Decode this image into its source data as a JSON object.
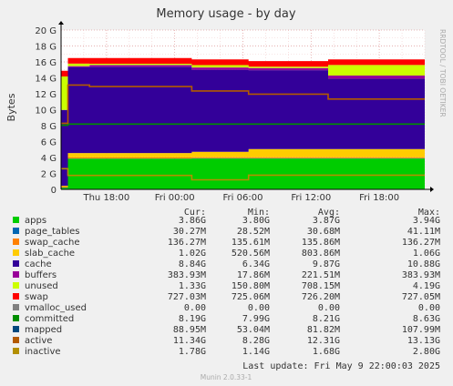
{
  "chart_data": {
    "type": "area",
    "title": "Memory usage - by day",
    "ylabel": "Bytes",
    "xlabel": "",
    "side_label": "RRDTOOL / TOBI OETIKER",
    "ylim": [
      0,
      20
    ],
    "y_unit": "G",
    "y_ticks": [
      "0",
      "2 G",
      "4 G",
      "6 G",
      "8 G",
      "10 G",
      "12 G",
      "14 G",
      "16 G",
      "18 G",
      "20 G"
    ],
    "x_ticks": [
      "Thu 18:00",
      "Fri 00:00",
      "Fri 06:00",
      "Fri 12:00",
      "Fri 18:00"
    ],
    "x_tick_hours": [
      18,
      24,
      30,
      36,
      42
    ],
    "x_range_hours": [
      14,
      46
    ],
    "grid": true,
    "stack_order": [
      "apps",
      "page_tables",
      "swap_cache",
      "slab_cache",
      "cache",
      "buffers",
      "unused",
      "swap"
    ],
    "line_series": [
      "committed",
      "active",
      "inactive"
    ],
    "columns": [
      "Cur:",
      "Min:",
      "Avg:",
      "Max:"
    ],
    "series": [
      {
        "name": "apps",
        "color": "#00cc00",
        "cur": "3.86G",
        "min": "3.80G",
        "avg": "3.87G",
        "max": "3.94G",
        "segments": [
          [
            14,
            14.6,
            0.2
          ],
          [
            14.6,
            25.5,
            3.85
          ],
          [
            25.5,
            46,
            3.88
          ]
        ]
      },
      {
        "name": "page_tables",
        "color": "#0066b3",
        "cur": "30.27M",
        "min": "28.52M",
        "avg": "30.68M",
        "max": "41.11M",
        "segments": [
          [
            14,
            46,
            0.03
          ]
        ]
      },
      {
        "name": "swap_cache",
        "color": "#ff8000",
        "cur": "136.27M",
        "min": "135.61M",
        "avg": "135.86M",
        "max": "136.27M",
        "segments": [
          [
            14,
            46,
            0.13
          ]
        ]
      },
      {
        "name": "slab_cache",
        "color": "#ffcc00",
        "cur": "1.02G",
        "min": "520.56M",
        "avg": "803.86M",
        "max": "1.06G",
        "segments": [
          [
            14,
            14.6,
            0.1
          ],
          [
            14.6,
            25.5,
            0.55
          ],
          [
            25.5,
            30.5,
            0.68
          ],
          [
            30.5,
            46,
            1.02
          ]
        ]
      },
      {
        "name": "cache",
        "color": "#330099",
        "cur": "8.84G",
        "min": "6.34G",
        "avg": "9.87G",
        "max": "10.88G",
        "segments": [
          [
            14,
            14.6,
            9.5
          ],
          [
            14.6,
            16.5,
            10.8
          ],
          [
            16.5,
            25.5,
            10.85
          ],
          [
            25.5,
            30.5,
            10.3
          ],
          [
            30.5,
            37.5,
            9.9
          ],
          [
            37.5,
            46,
            8.84
          ]
        ]
      },
      {
        "name": "buffers",
        "color": "#990099",
        "cur": "383.93M",
        "min": "17.86M",
        "avg": "221.51M",
        "max": "383.93M",
        "segments": [
          [
            14,
            14.6,
            0.02
          ],
          [
            14.6,
            16.5,
            0.12
          ],
          [
            16.5,
            25.5,
            0.2
          ],
          [
            25.5,
            37.5,
            0.28
          ],
          [
            37.5,
            46,
            0.38
          ]
        ]
      },
      {
        "name": "unused",
        "color": "#ccff00",
        "cur": "1.33G",
        "min": "150.80M",
        "avg": "708.15M",
        "max": "4.19G",
        "segments": [
          [
            14,
            14.6,
            4.19
          ],
          [
            14.6,
            16.5,
            0.3
          ],
          [
            16.5,
            25.5,
            0.16
          ],
          [
            25.5,
            30.5,
            0.3
          ],
          [
            30.5,
            37.5,
            0.15
          ],
          [
            37.5,
            46,
            1.33
          ]
        ]
      },
      {
        "name": "swap",
        "color": "#ff0000",
        "cur": "727.03M",
        "min": "725.06M",
        "avg": "726.20M",
        "max": "727.05M",
        "segments": [
          [
            14,
            46,
            0.71
          ]
        ]
      },
      {
        "name": "vmalloc_used",
        "color": "#808080",
        "cur": "0.00",
        "min": "0.00",
        "avg": "0.00",
        "max": "0.00",
        "segments": []
      },
      {
        "name": "committed",
        "color": "#008f00",
        "cur": "8.19G",
        "min": "7.99G",
        "avg": "8.21G",
        "max": "8.63G",
        "segments": [
          [
            14,
            14.6,
            8.05
          ],
          [
            14.6,
            46,
            8.2
          ]
        ]
      },
      {
        "name": "mapped",
        "color": "#00487d",
        "cur": "88.95M",
        "min": "53.04M",
        "avg": "81.82M",
        "max": "107.99M",
        "segments": [
          [
            14,
            46,
            0.09
          ]
        ]
      },
      {
        "name": "active",
        "color": "#b35a00",
        "cur": "11.34G",
        "min": "8.28G",
        "avg": "12.31G",
        "max": "13.13G",
        "segments": [
          [
            14,
            14.6,
            8.3
          ],
          [
            14.6,
            16.5,
            13.1
          ],
          [
            16.5,
            25.5,
            12.9
          ],
          [
            25.5,
            30.5,
            12.35
          ],
          [
            30.5,
            37.5,
            11.95
          ],
          [
            37.5,
            46,
            11.34
          ]
        ]
      },
      {
        "name": "inactive",
        "color": "#b38f00",
        "cur": "1.78G",
        "min": "1.14G",
        "avg": "1.68G",
        "max": "2.80G",
        "segments": [
          [
            14,
            14.6,
            2.6
          ],
          [
            14.6,
            25.5,
            1.75
          ],
          [
            25.5,
            30.5,
            1.2
          ],
          [
            30.5,
            46,
            1.78
          ]
        ]
      }
    ]
  },
  "footer": {
    "last_update": "Last update:  Fri May  9 22:00:03 2025",
    "munin_version": "Munin 2.0.33-1"
  }
}
